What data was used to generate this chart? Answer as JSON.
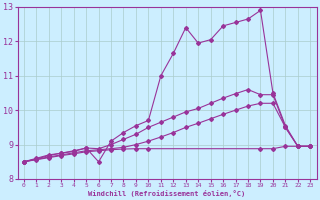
{
  "background_color": "#cceeff",
  "grid_color": "#aacccc",
  "line_color": "#993399",
  "xlabel": "Windchill (Refroidissement éolien,°C)",
  "xlim": [
    -0.5,
    23.5
  ],
  "ylim": [
    8,
    13
  ],
  "yticks": [
    8,
    9,
    10,
    11,
    12,
    13
  ],
  "xticks": [
    0,
    1,
    2,
    3,
    4,
    5,
    6,
    7,
    8,
    9,
    10,
    11,
    12,
    13,
    14,
    15,
    16,
    17,
    18,
    19,
    20,
    21,
    22,
    23
  ],
  "series1_x": [
    0,
    1,
    2,
    3,
    4,
    5,
    6,
    7,
    8,
    9,
    10,
    11,
    12,
    13,
    14,
    15,
    16,
    17,
    18,
    19,
    20,
    21,
    22,
    23
  ],
  "series1_y": [
    8.5,
    8.6,
    8.7,
    8.75,
    8.8,
    8.9,
    8.5,
    9.1,
    9.35,
    9.55,
    9.7,
    11.0,
    11.65,
    12.4,
    11.95,
    12.05,
    12.45,
    12.55,
    12.65,
    12.9,
    10.5,
    9.55,
    8.95,
    8.95
  ],
  "series2_x": [
    0,
    1,
    2,
    3,
    4,
    5,
    6,
    7,
    8,
    9,
    10,
    11,
    12,
    13,
    14,
    15,
    16,
    17,
    18,
    19,
    20,
    21,
    22,
    23
  ],
  "series2_y": [
    8.5,
    8.58,
    8.68,
    8.75,
    8.82,
    8.9,
    8.88,
    9.0,
    9.15,
    9.3,
    9.5,
    9.65,
    9.8,
    9.95,
    10.05,
    10.2,
    10.35,
    10.48,
    10.6,
    10.45,
    10.45,
    9.5,
    8.95,
    8.95
  ],
  "series3_x": [
    0,
    1,
    2,
    3,
    4,
    5,
    6,
    7,
    8,
    9,
    10,
    19,
    20,
    21,
    22,
    23
  ],
  "series3_y": [
    8.5,
    8.56,
    8.62,
    8.68,
    8.73,
    8.79,
    8.82,
    8.85,
    8.87,
    8.88,
    8.88,
    8.88,
    8.88,
    8.95,
    8.95,
    8.95
  ],
  "series4_x": [
    0,
    1,
    2,
    3,
    4,
    5,
    6,
    7,
    8,
    9,
    10,
    11,
    12,
    13,
    14,
    15,
    16,
    17,
    18,
    19,
    20,
    21,
    22,
    23
  ],
  "series4_y": [
    8.5,
    8.57,
    8.64,
    8.7,
    8.76,
    8.82,
    8.85,
    8.88,
    8.92,
    9.0,
    9.1,
    9.22,
    9.35,
    9.5,
    9.62,
    9.75,
    9.88,
    10.0,
    10.12,
    10.2,
    10.2,
    9.5,
    8.95,
    8.95
  ]
}
